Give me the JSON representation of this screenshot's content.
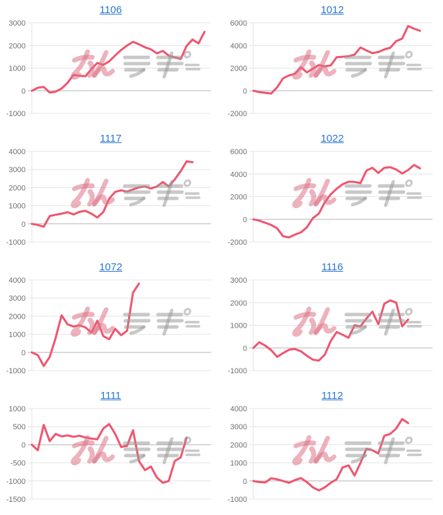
{
  "page": {
    "layout": "2x4-grid-of-sparkline-charts",
    "background": "#ffffff"
  },
  "colors": {
    "line": "#f0546e",
    "title_link": "#2a76d2",
    "grid_line": "#e4e4e4",
    "zero_line": "#b5b5b5",
    "axis_line": "#e0e0e0",
    "tick_label": "#6f6f6f",
    "watermark_pink": "#dd7386",
    "watermark_gray": "#9a9a9a"
  },
  "watermark": {
    "text": "みんレポ",
    "pink_text": "みん",
    "gray_text": "レポ"
  },
  "chart_data": [
    {
      "type": "line",
      "title": "1106",
      "ylim": [
        -1000,
        3000
      ],
      "yticks": [
        -1000,
        0,
        1000,
        2000,
        3000
      ],
      "grid": true,
      "legend": "none",
      "values": [
        0,
        130,
        170,
        -80,
        -40,
        100,
        350,
        700,
        660,
        640,
        950,
        1230,
        1140,
        1300,
        1560,
        1800,
        2000,
        2160,
        2050,
        1920,
        1830,
        1650,
        1760,
        1550,
        1480,
        1400,
        1980,
        2260,
        2090,
        2600
      ]
    },
    {
      "type": "line",
      "title": "1012",
      "ylim": [
        -2000,
        6000
      ],
      "yticks": [
        -2000,
        0,
        2000,
        4000,
        6000
      ],
      "grid": true,
      "legend": "none",
      "values": [
        0,
        -120,
        -180,
        -250,
        300,
        1100,
        1350,
        1500,
        2080,
        1620,
        1950,
        2270,
        2150,
        2230,
        2960,
        3000,
        3050,
        3200,
        3820,
        3560,
        3320,
        3420,
        3650,
        3800,
        4380,
        4600,
        5720,
        5480,
        5300
      ]
    },
    {
      "type": "line",
      "title": "1117",
      "ylim": [
        -1000,
        4000
      ],
      "yticks": [
        -1000,
        0,
        1000,
        2000,
        3000,
        4000
      ],
      "grid": true,
      "legend": "none",
      "values": [
        0,
        -60,
        -160,
        430,
        500,
        560,
        640,
        520,
        660,
        720,
        560,
        350,
        650,
        1400,
        1760,
        1850,
        1780,
        1900,
        2010,
        2060,
        1950,
        2060,
        2310,
        2060,
        2450,
        2900,
        3450,
        3400
      ]
    },
    {
      "type": "line",
      "title": "1022",
      "ylim": [
        -2000,
        6000
      ],
      "yticks": [
        -2000,
        0,
        2000,
        4000,
        6000
      ],
      "grid": true,
      "legend": "none",
      "values": [
        0,
        -120,
        -300,
        -500,
        -800,
        -1500,
        -1600,
        -1350,
        -1150,
        -700,
        100,
        500,
        1500,
        2200,
        2700,
        3100,
        3320,
        3300,
        3200,
        4300,
        4550,
        4100,
        4550,
        4600,
        4400,
        4050,
        4350,
        4800,
        4500
      ]
    },
    {
      "type": "line",
      "title": "1072",
      "ylim": [
        -1000,
        4000
      ],
      "yticks": [
        -1000,
        0,
        1000,
        2000,
        3000,
        4000
      ],
      "grid": true,
      "legend": "none",
      "values": [
        0,
        -150,
        -750,
        -250,
        800,
        2050,
        1550,
        1430,
        1500,
        1380,
        1100,
        1750,
        900,
        730,
        1300,
        950,
        1200,
        3300,
        3800
      ]
    },
    {
      "type": "line",
      "title": "1116",
      "ylim": [
        -1000,
        3000
      ],
      "yticks": [
        -1000,
        0,
        1000,
        2000,
        3000
      ],
      "grid": true,
      "legend": "none",
      "values": [
        0,
        250,
        100,
        -100,
        -400,
        -230,
        -80,
        -50,
        -150,
        -350,
        -520,
        -560,
        -300,
        300,
        700,
        580,
        450,
        1000,
        950,
        1300,
        1600,
        1050,
        1950,
        2100,
        2000,
        950,
        1250
      ]
    },
    {
      "type": "line",
      "title": "1111",
      "ylim": [
        -1500,
        1000
      ],
      "yticks": [
        -1500,
        -1000,
        -500,
        0,
        500,
        1000
      ],
      "grid": true,
      "legend": "none",
      "values": [
        0,
        -150,
        550,
        100,
        300,
        230,
        260,
        220,
        250,
        200,
        170,
        150,
        450,
        570,
        300,
        -60,
        -30,
        400,
        -450,
        -700,
        -600,
        -900,
        -1050,
        -1000,
        -450,
        -350,
        200
      ]
    },
    {
      "type": "line",
      "title": "1112",
      "ylim": [
        -1000,
        4000
      ],
      "yticks": [
        -1000,
        0,
        1000,
        2000,
        3000,
        4000
      ],
      "grid": true,
      "legend": "none",
      "values": [
        0,
        -60,
        -80,
        150,
        90,
        0,
        -100,
        50,
        160,
        -60,
        -350,
        -520,
        -350,
        -100,
        100,
        750,
        860,
        300,
        1000,
        1780,
        1700,
        1520,
        2500,
        2600,
        2900,
        3420,
        3200
      ]
    }
  ]
}
